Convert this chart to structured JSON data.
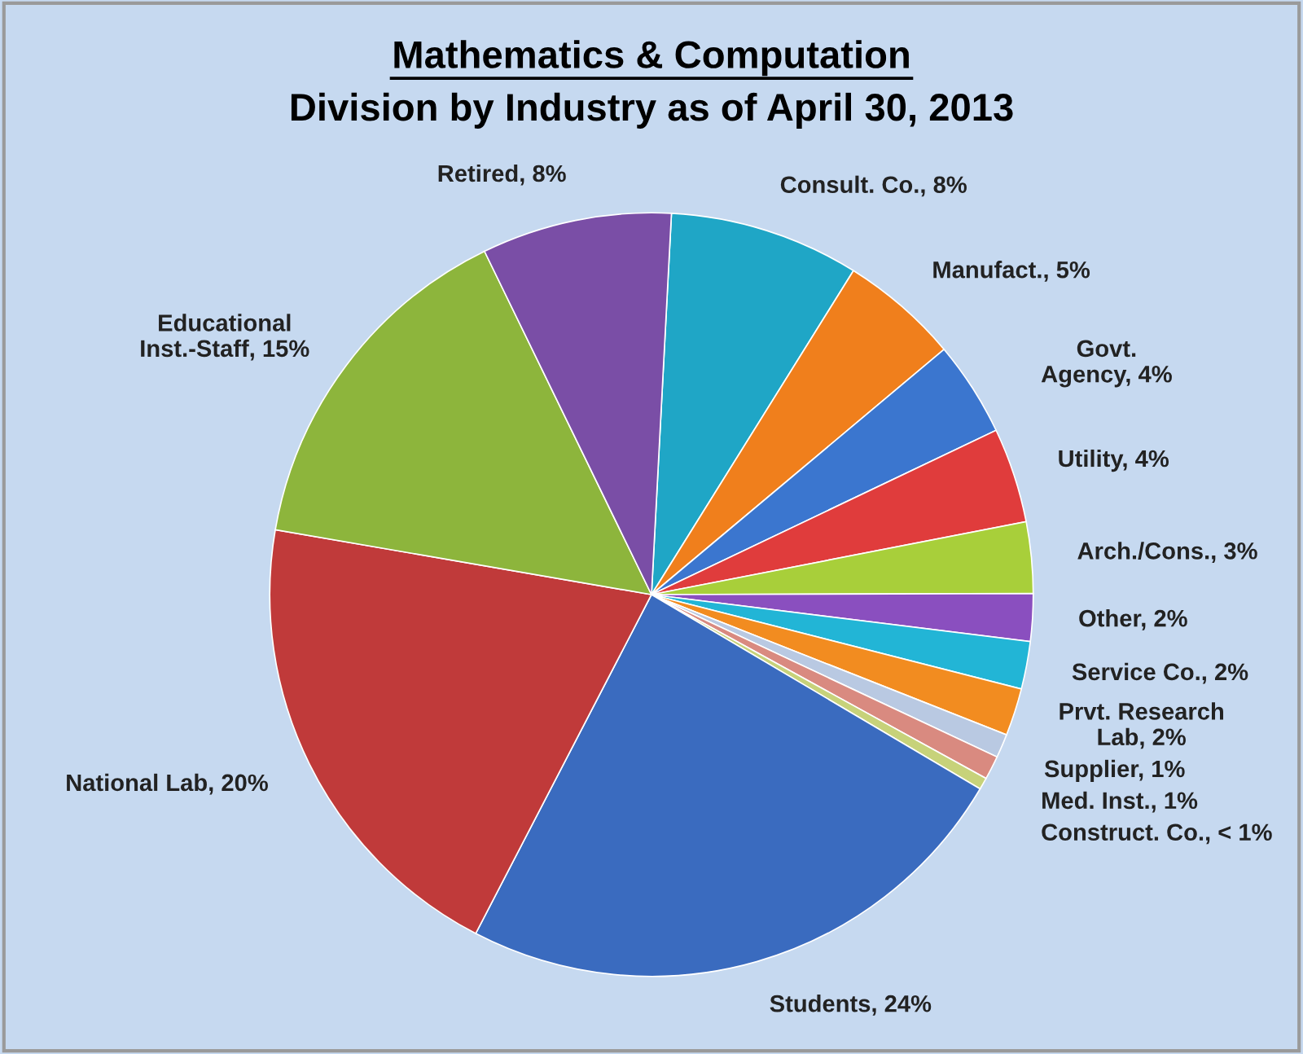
{
  "chart_data": {
    "type": "pie",
    "title": "Mathematics & Computation",
    "subtitle": "Division by Industry as of April 30, 2013",
    "categories": [
      "Consult. Co.",
      "Manufact.",
      "Govt.\nAgency",
      "Utility",
      "Arch./Cons.",
      "Other",
      "Service Co.",
      "Prvt. Research\nLab",
      "Supplier",
      "Med. Inst.",
      "Construct. Co.",
      "Students",
      "National Lab",
      "Educational\nInst.-Staff",
      "Retired"
    ],
    "values": [
      8,
      5,
      4,
      4,
      3,
      2,
      2,
      2,
      1,
      1,
      0.5,
      24,
      20,
      15,
      8
    ],
    "value_labels": [
      "8%",
      "5%",
      "4%",
      "4%",
      "3%",
      "2%",
      "2%",
      "2%",
      "1%",
      "1%",
      "< 1%",
      "24%",
      "20%",
      "15%",
      "8%"
    ],
    "colors": [
      "#1fa6c6",
      "#f07f1c",
      "#3b76cf",
      "#e03c3c",
      "#a8cf3a",
      "#8a4fbf",
      "#22b5d6",
      "#f28c20",
      "#b9c9e2",
      "#d98a80",
      "#c7d27a",
      "#3a6bbf",
      "#c03a3a",
      "#8db53c",
      "#7a4ea6"
    ],
    "legend": false
  }
}
